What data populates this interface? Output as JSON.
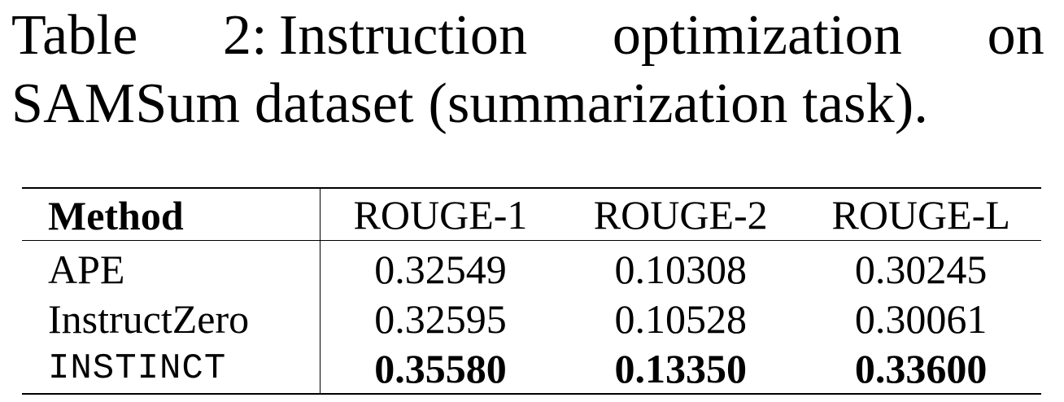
{
  "caption": {
    "label": "Table 2:",
    "text": "Instruction optimization on SAMSum dataset (summarization task)."
  },
  "table": {
    "headers": [
      "Method",
      "ROUGE-1",
      "ROUGE-2",
      "ROUGE-L"
    ],
    "rows": [
      {
        "method": "APE",
        "rouge1": "0.32549",
        "rouge2": "0.10308",
        "rougeL": "0.30245"
      },
      {
        "method": "InstructZero",
        "rouge1": "0.32595",
        "rouge2": "0.10528",
        "rougeL": "0.30061"
      },
      {
        "method": "INSTINCT",
        "rouge1": "0.35580",
        "rouge2": "0.13350",
        "rougeL": "0.33600"
      }
    ]
  }
}
